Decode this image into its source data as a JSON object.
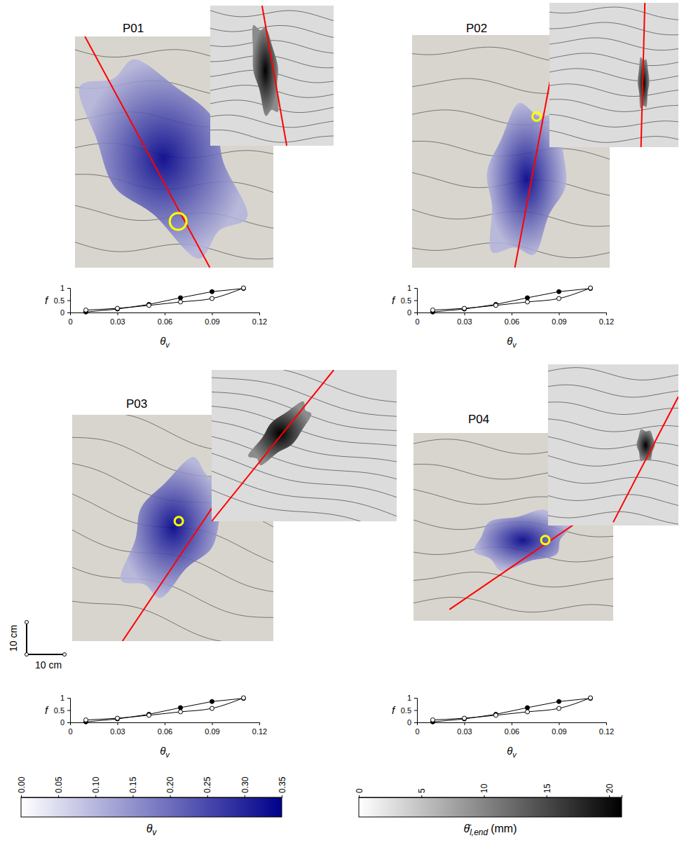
{
  "chart_data": [
    {
      "type": "line",
      "title": "P01",
      "xlabel": "θv",
      "ylabel": "f",
      "xlim": [
        0,
        0.12
      ],
      "ylim": [
        0,
        1
      ],
      "xticks": [
        0,
        0.03,
        0.06,
        0.09,
        0.12
      ],
      "yticks": [
        0,
        0.5,
        1
      ],
      "x": [
        0.01,
        0.03,
        0.05,
        0.07,
        0.09,
        0.11
      ],
      "series": [
        {
          "color": "#000000",
          "marker": "filled-circle",
          "line_style": "solid",
          "values": [
            0.02,
            0.14,
            0.33,
            0.6,
            0.85,
            0.98
          ]
        },
        {
          "color": "#000000",
          "marker": "open-circle",
          "line_style": "solid",
          "values": [
            0.1,
            0.17,
            0.29,
            0.43,
            0.57,
            1.0
          ]
        }
      ]
    },
    {
      "type": "line",
      "title": "P02",
      "xlabel": "θv",
      "ylabel": "f",
      "xlim": [
        0,
        0.12
      ],
      "ylim": [
        0,
        1
      ],
      "xticks": [
        0,
        0.03,
        0.06,
        0.09,
        0.12
      ],
      "yticks": [
        0,
        0.5,
        1
      ],
      "x": [
        0.01,
        0.03,
        0.05,
        0.07,
        0.09,
        0.11
      ],
      "series": [
        {
          "color": "#000000",
          "marker": "filled-circle",
          "line_style": "solid",
          "values": [
            0.02,
            0.14,
            0.33,
            0.6,
            0.85,
            0.98
          ]
        },
        {
          "color": "#000000",
          "marker": "open-circle",
          "line_style": "solid",
          "values": [
            0.1,
            0.17,
            0.29,
            0.43,
            0.57,
            1.0
          ]
        }
      ]
    },
    {
      "type": "line",
      "title": "P03",
      "xlabel": "θv",
      "ylabel": "f",
      "xlim": [
        0,
        0.12
      ],
      "ylim": [
        0,
        1
      ],
      "xticks": [
        0,
        0.03,
        0.06,
        0.09,
        0.12
      ],
      "yticks": [
        0,
        0.5,
        1
      ],
      "x": [
        0.01,
        0.03,
        0.05,
        0.07,
        0.09,
        0.11
      ],
      "series": [
        {
          "color": "#000000",
          "marker": "filled-circle",
          "line_style": "solid",
          "values": [
            0.02,
            0.14,
            0.33,
            0.6,
            0.85,
            0.98
          ]
        },
        {
          "color": "#000000",
          "marker": "open-circle",
          "line_style": "solid",
          "values": [
            0.1,
            0.17,
            0.29,
            0.43,
            0.57,
            1.0
          ]
        }
      ]
    },
    {
      "type": "line",
      "title": "P04",
      "xlabel": "θv",
      "ylabel": "f",
      "xlim": [
        0,
        0.12
      ],
      "ylim": [
        0,
        1
      ],
      "xticks": [
        0,
        0.03,
        0.06,
        0.09,
        0.12
      ],
      "yticks": [
        0,
        0.5,
        1
      ],
      "x": [
        0.01,
        0.03,
        0.05,
        0.07,
        0.09,
        0.11
      ],
      "series": [
        {
          "color": "#000000",
          "marker": "filled-circle",
          "line_style": "solid",
          "values": [
            0.02,
            0.14,
            0.33,
            0.6,
            0.85,
            0.98
          ]
        },
        {
          "color": "#000000",
          "marker": "open-circle",
          "line_style": "solid",
          "values": [
            0.1,
            0.17,
            0.29,
            0.43,
            0.57,
            1.0
          ]
        }
      ]
    }
  ],
  "scale_bar": {
    "vertical": "10 cm",
    "horizontal": "10 cm"
  },
  "colorbars": [
    {
      "label": {
        "symbol": "θ",
        "subscript": "v"
      },
      "range": [
        0,
        0.35
      ],
      "ticks": [
        {
          "value": 0,
          "label": "0.00"
        },
        {
          "value": 0.05,
          "label": "0.05"
        },
        {
          "value": 0.1,
          "label": "0.10"
        },
        {
          "value": 0.15,
          "label": "0.15"
        },
        {
          "value": 0.2,
          "label": "0.20"
        },
        {
          "value": 0.25,
          "label": "0.25"
        },
        {
          "value": 0.3,
          "label": "0.30"
        },
        {
          "value": 0.35,
          "label": "0.35"
        }
      ],
      "colors": [
        "#ffffff",
        "#00008b"
      ]
    },
    {
      "label": {
        "symbol": "θ̄",
        "subscript": "l,end",
        "unit": "(mm)"
      },
      "range": [
        0,
        21
      ],
      "ticks": [
        0,
        5,
        10,
        15,
        20
      ],
      "colors": [
        "#ffffff",
        "#000000"
      ]
    }
  ]
}
